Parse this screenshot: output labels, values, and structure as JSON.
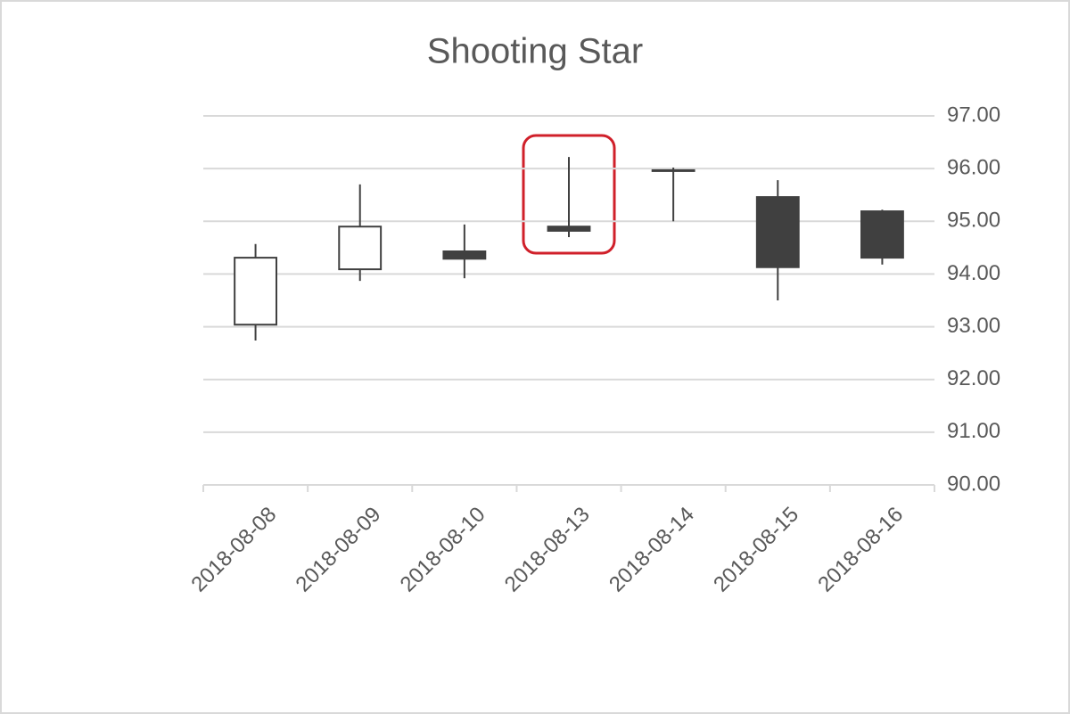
{
  "chart_data": {
    "type": "candlestick",
    "title": "Shooting Star",
    "categories": [
      "2018-08-08",
      "2018-08-09",
      "2018-08-10",
      "2018-08-13",
      "2018-08-14",
      "2018-08-15",
      "2018-08-16"
    ],
    "open": [
      93.04,
      94.09,
      94.43,
      94.9,
      95.97,
      95.46,
      95.19
    ],
    "high": [
      94.57,
      95.7,
      94.94,
      96.22,
      96.02,
      95.78,
      95.22
    ],
    "low": [
      92.74,
      93.87,
      93.92,
      94.7,
      95.0,
      93.5,
      94.18
    ],
    "close": [
      94.31,
      94.9,
      94.29,
      94.82,
      95.96,
      94.13,
      94.31
    ],
    "up_color": "#ffffff",
    "down_color": "#404040",
    "line_color": "#404040",
    "ylim": [
      90,
      97
    ],
    "yticks": [
      {
        "value": 90,
        "label": "90.00"
      },
      {
        "value": 91,
        "label": "91.00"
      },
      {
        "value": 92,
        "label": "92.00"
      },
      {
        "value": 93,
        "label": "93.00"
      },
      {
        "value": 94,
        "label": "94.00"
      },
      {
        "value": 95,
        "label": "95.00"
      },
      {
        "value": 96,
        "label": "96.00"
      },
      {
        "value": 97,
        "label": "97.00"
      }
    ],
    "y_axis_side": "right",
    "grid": true
  }
}
